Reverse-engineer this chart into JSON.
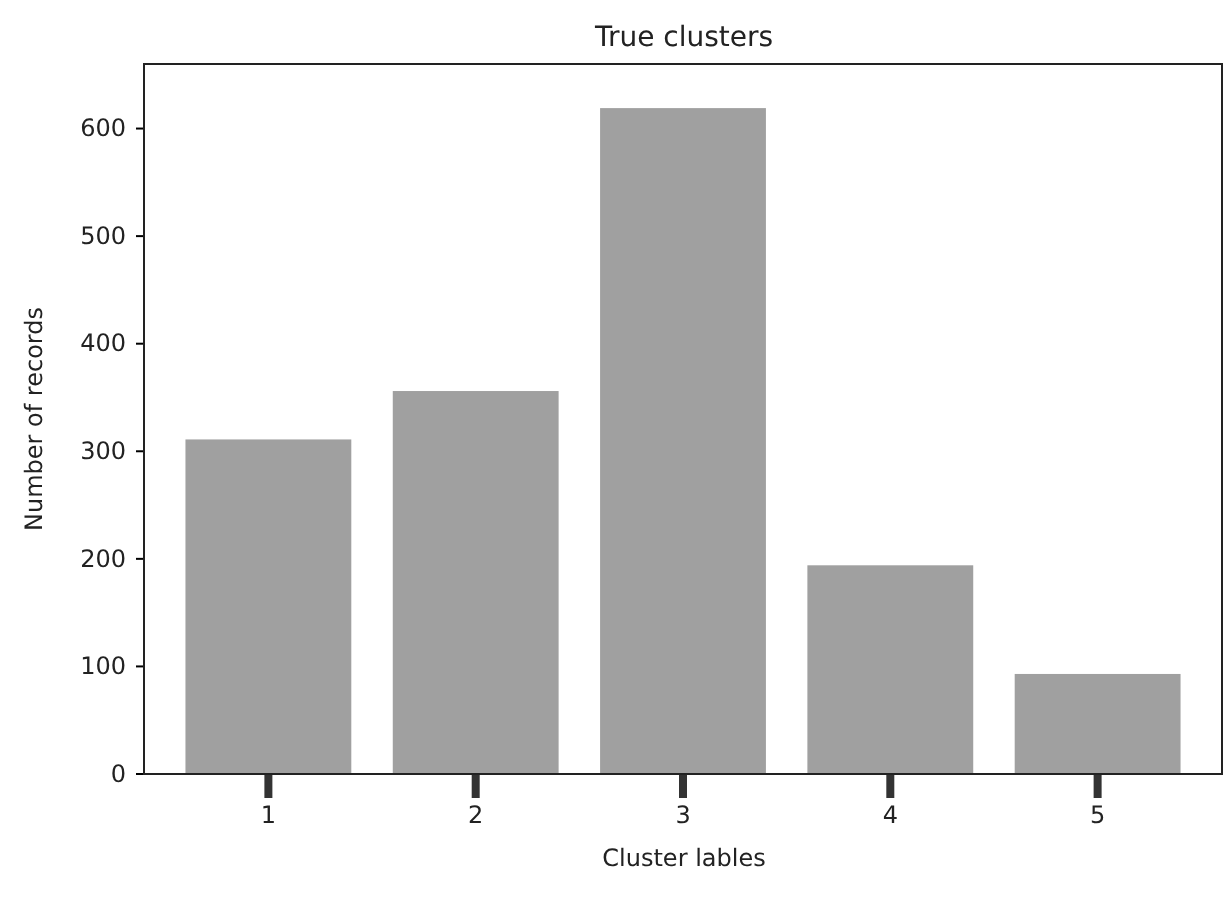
{
  "chart_data": {
    "type": "bar",
    "title": "True clusters",
    "xlabel": "Cluster lables",
    "ylabel": "Number of records",
    "categories": [
      "1",
      "2",
      "3",
      "4",
      "5"
    ],
    "values": [
      311,
      356,
      619,
      194,
      93
    ],
    "color": "#a0a0a0",
    "ylim": [
      0,
      660
    ],
    "yticks": [
      0,
      100,
      200,
      300,
      400,
      500,
      600
    ],
    "grid": false
  }
}
